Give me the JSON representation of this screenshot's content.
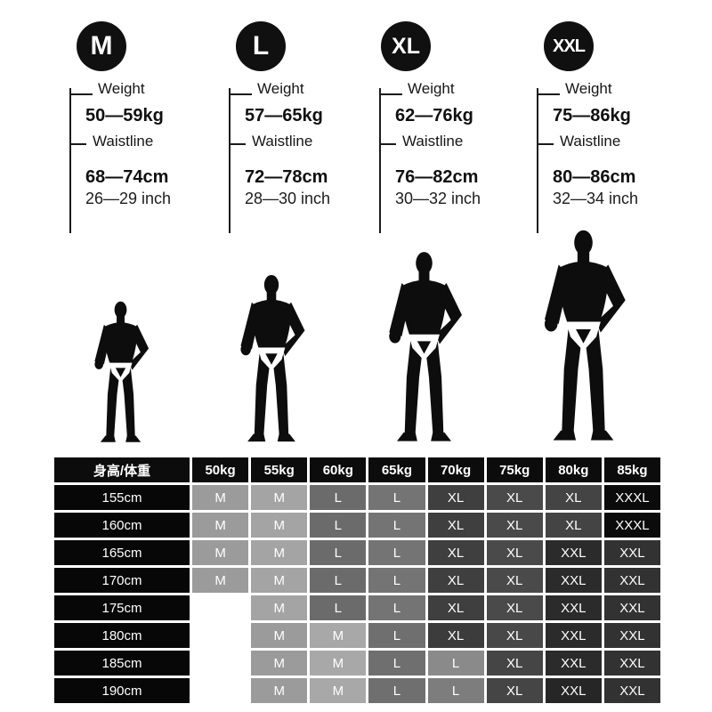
{
  "page": {
    "background": "#ffffff"
  },
  "colors": {
    "badge_bg": "#101010",
    "badge_text": "#ffffff",
    "text": "#161616",
    "table_header_bg": "#0c0c0c",
    "table_row_header_bg": "#070707",
    "table_cell_text": "#ffffff"
  },
  "sizes": [
    {
      "label": "M",
      "weight_label": "Weight",
      "weight": "50—59kg",
      "waistline_label": "Waistline",
      "waistline_cm": "68—74cm",
      "waistline_inch": "26—29 inch",
      "figure_icon": "male-silhouette"
    },
    {
      "label": "L",
      "weight_label": "Weight",
      "weight": "57—65kg",
      "waistline_label": "Waistline",
      "waistline_cm": "72—78cm",
      "waistline_inch": "28—30 inch",
      "figure_icon": "male-silhouette"
    },
    {
      "label": "XL",
      "weight_label": "Weight",
      "weight": "62—76kg",
      "waistline_label": "Waistline",
      "waistline_cm": "76—82cm",
      "waistline_inch": "30—32 inch",
      "figure_icon": "male-silhouette"
    },
    {
      "label": "XXL",
      "weight_label": "Weight",
      "weight": "75—86kg",
      "waistline_label": "Waistline",
      "waistline_cm": "80—86cm",
      "waistline_inch": "32—34 inch",
      "figure_icon": "male-silhouette"
    }
  ],
  "table": {
    "corner_header": "身高/体重",
    "column_headers": [
      "50kg",
      "55kg",
      "60kg",
      "65kg",
      "70kg",
      "75kg",
      "80kg",
      "85kg"
    ],
    "rows": [
      {
        "height": "155cm",
        "cells": [
          {
            "label": "M",
            "bg": "#9b9b9b"
          },
          {
            "label": "M",
            "bg": "#a4a4a4"
          },
          {
            "label": "L",
            "bg": "#6b6b6b"
          },
          {
            "label": "L",
            "bg": "#747474"
          },
          {
            "label": "XL",
            "bg": "#3f3f3f"
          },
          {
            "label": "XL",
            "bg": "#4a4a4a"
          },
          {
            "label": "XL",
            "bg": "#444444"
          },
          {
            "label": "XXXL",
            "bg": "#0b0b0b"
          }
        ]
      },
      {
        "height": "160cm",
        "cells": [
          {
            "label": "M",
            "bg": "#9b9b9b"
          },
          {
            "label": "M",
            "bg": "#a4a4a4"
          },
          {
            "label": "L",
            "bg": "#6b6b6b"
          },
          {
            "label": "L",
            "bg": "#747474"
          },
          {
            "label": "XL",
            "bg": "#3f3f3f"
          },
          {
            "label": "XL",
            "bg": "#4a4a4a"
          },
          {
            "label": "XL",
            "bg": "#444444"
          },
          {
            "label": "XXXL",
            "bg": "#0b0b0b"
          }
        ]
      },
      {
        "height": "165cm",
        "cells": [
          {
            "label": "M",
            "bg": "#9b9b9b"
          },
          {
            "label": "M",
            "bg": "#a4a4a4"
          },
          {
            "label": "L",
            "bg": "#6b6b6b"
          },
          {
            "label": "L",
            "bg": "#747474"
          },
          {
            "label": "XL",
            "bg": "#3f3f3f"
          },
          {
            "label": "XL",
            "bg": "#4a4a4a"
          },
          {
            "label": "XXL",
            "bg": "#2b2b2b"
          },
          {
            "label": "XXL",
            "bg": "#323232"
          }
        ]
      },
      {
        "height": "170cm",
        "cells": [
          {
            "label": "M",
            "bg": "#9b9b9b"
          },
          {
            "label": "M",
            "bg": "#a4a4a4"
          },
          {
            "label": "L",
            "bg": "#6b6b6b"
          },
          {
            "label": "L",
            "bg": "#747474"
          },
          {
            "label": "XL",
            "bg": "#3f3f3f"
          },
          {
            "label": "XL",
            "bg": "#4a4a4a"
          },
          {
            "label": "XXL",
            "bg": "#2b2b2b"
          },
          {
            "label": "XXL",
            "bg": "#323232"
          }
        ]
      },
      {
        "height": "175cm",
        "cells": [
          {
            "label": "",
            "bg": ""
          },
          {
            "label": "M",
            "bg": "#a4a4a4"
          },
          {
            "label": "L",
            "bg": "#6b6b6b"
          },
          {
            "label": "L",
            "bg": "#747474"
          },
          {
            "label": "XL",
            "bg": "#3f3f3f"
          },
          {
            "label": "XL",
            "bg": "#4a4a4a"
          },
          {
            "label": "XXL",
            "bg": "#2b2b2b"
          },
          {
            "label": "XXL",
            "bg": "#323232"
          }
        ]
      },
      {
        "height": "180cm",
        "cells": [
          {
            "label": "",
            "bg": ""
          },
          {
            "label": "M",
            "bg": "#9b9b9b"
          },
          {
            "label": "M",
            "bg": "#a8a8a8"
          },
          {
            "label": "L",
            "bg": "#6f6f6f"
          },
          {
            "label": "XL",
            "bg": "#3c3c3c"
          },
          {
            "label": "XL",
            "bg": "#484848"
          },
          {
            "label": "XXL",
            "bg": "#2b2b2b"
          },
          {
            "label": "XXL",
            "bg": "#323232"
          }
        ]
      },
      {
        "height": "185cm",
        "cells": [
          {
            "label": "",
            "bg": ""
          },
          {
            "label": "M",
            "bg": "#9b9b9b"
          },
          {
            "label": "M",
            "bg": "#a8a8a8"
          },
          {
            "label": "L",
            "bg": "#6f6f6f"
          },
          {
            "label": "L",
            "bg": "#8a8a8a"
          },
          {
            "label": "XL",
            "bg": "#454545"
          },
          {
            "label": "XXL",
            "bg": "#2b2b2b"
          },
          {
            "label": "XXL",
            "bg": "#323232"
          }
        ]
      },
      {
        "height": "190cm",
        "cells": [
          {
            "label": "",
            "bg": ""
          },
          {
            "label": "M",
            "bg": "#9b9b9b"
          },
          {
            "label": "M",
            "bg": "#a8a8a8"
          },
          {
            "label": "L",
            "bg": "#6f6f6f"
          },
          {
            "label": "L",
            "bg": "#7d7d7d"
          },
          {
            "label": "XL",
            "bg": "#454545"
          },
          {
            "label": "XXL",
            "bg": "#262626"
          },
          {
            "label": "XXL",
            "bg": "#323232"
          }
        ]
      }
    ]
  },
  "chart_data": {
    "type": "table",
    "title": "Size chart (height/weight to size)",
    "columns": [
      "身高/体重",
      "50kg",
      "55kg",
      "60kg",
      "65kg",
      "70kg",
      "75kg",
      "80kg",
      "85kg"
    ],
    "rows": [
      [
        "155cm",
        "M",
        "M",
        "L",
        "L",
        "XL",
        "XL",
        "XL",
        "XXXL"
      ],
      [
        "160cm",
        "M",
        "M",
        "L",
        "L",
        "XL",
        "XL",
        "XL",
        "XXXL"
      ],
      [
        "165cm",
        "M",
        "M",
        "L",
        "L",
        "XL",
        "XL",
        "XXL",
        "XXL"
      ],
      [
        "170cm",
        "M",
        "M",
        "L",
        "L",
        "XL",
        "XL",
        "XXL",
        "XXL"
      ],
      [
        "175cm",
        "",
        "M",
        "L",
        "L",
        "XL",
        "XL",
        "XXL",
        "XXL"
      ],
      [
        "180cm",
        "",
        "M",
        "M",
        "L",
        "XL",
        "XL",
        "XXL",
        "XXL"
      ],
      [
        "185cm",
        "",
        "M",
        "M",
        "L",
        "L",
        "XL",
        "XXL",
        "XXL"
      ],
      [
        "190cm",
        "",
        "M",
        "M",
        "L",
        "L",
        "XL",
        "XXL",
        "XXL"
      ]
    ],
    "size_specs": [
      {
        "size": "M",
        "weight": "50—59kg",
        "waistline_cm": "68—74cm",
        "waistline_inch": "26—29 inch"
      },
      {
        "size": "L",
        "weight": "57—65kg",
        "waistline_cm": "72—78cm",
        "waistline_inch": "28—30 inch"
      },
      {
        "size": "XL",
        "weight": "62—76kg",
        "waistline_cm": "76—82cm",
        "waistline_inch": "30—32 inch"
      },
      {
        "size": "XXL",
        "weight": "75—86kg",
        "waistline_cm": "80—86cm",
        "waistline_inch": "32—34 inch"
      }
    ]
  }
}
